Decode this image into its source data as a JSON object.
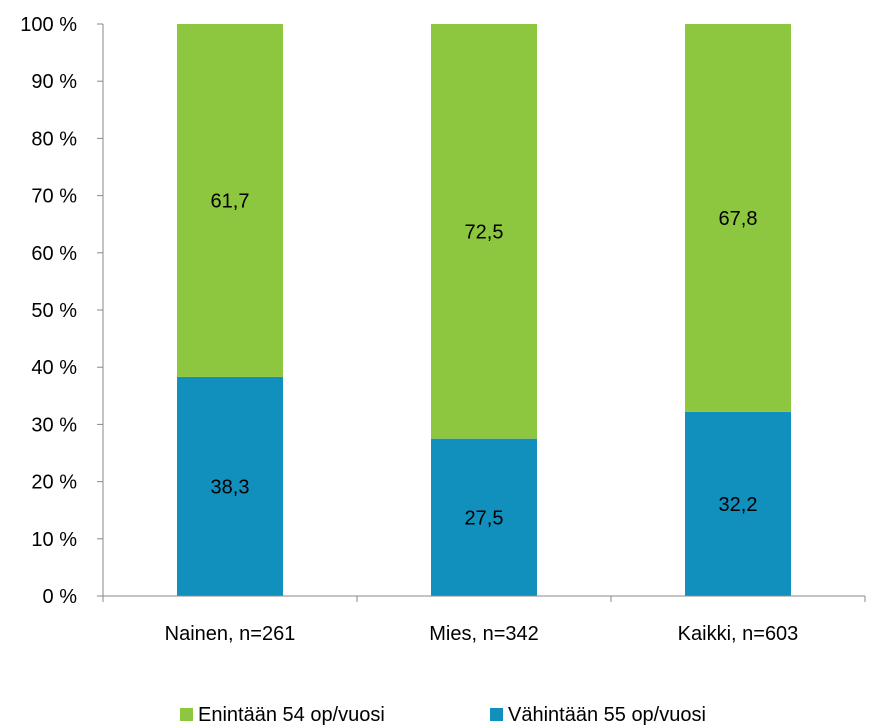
{
  "chart_data": {
    "type": "bar",
    "stacked": true,
    "categories": [
      "Nainen, n=261",
      "Mies, n=342",
      "Kaikki, n=603"
    ],
    "series": [
      {
        "name": "Vähintään 55 op/vuosi",
        "color": "#1190BE",
        "values": [
          38.3,
          27.5,
          32.2
        ],
        "labels": [
          "38,3",
          "27,5",
          "32,2"
        ]
      },
      {
        "name": "Enintään 54 op/vuosi",
        "color": "#8DC63F",
        "values": [
          61.7,
          72.5,
          67.8
        ],
        "labels": [
          "61,7",
          "72,5",
          "67,8"
        ]
      }
    ],
    "ylim": [
      0,
      100
    ],
    "yticks": [
      0,
      10,
      20,
      30,
      40,
      50,
      60,
      70,
      80,
      90,
      100
    ],
    "ytick_labels": [
      "0 %",
      "10 %",
      "20 %",
      "30 %",
      "40 %",
      "50 %",
      "60 %",
      "70 %",
      "80 %",
      "90 %",
      "100 %"
    ],
    "legend_order": [
      "Enintään 54 op/vuosi",
      "Vähintään 55 op/vuosi"
    ],
    "legend_position": "bottom",
    "grid": false,
    "title": "",
    "xlabel": "",
    "ylabel": ""
  }
}
